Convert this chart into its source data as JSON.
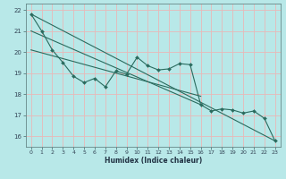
{
  "title": "",
  "xlabel": "Humidex (Indice chaleur)",
  "bg_color": "#b8e8e8",
  "grid_color": "#e8b8b8",
  "line_color": "#2a6b5e",
  "xlim": [
    -0.5,
    23.5
  ],
  "ylim": [
    15.5,
    22.3
  ],
  "xticks": [
    0,
    1,
    2,
    3,
    4,
    5,
    6,
    7,
    8,
    9,
    10,
    11,
    12,
    13,
    14,
    15,
    16,
    17,
    18,
    19,
    20,
    21,
    22,
    23
  ],
  "yticks": [
    16,
    17,
    18,
    19,
    20,
    21,
    22
  ],
  "series1_x": [
    0,
    1,
    2,
    3,
    4,
    5,
    6,
    7,
    8,
    9,
    10,
    11,
    12,
    13,
    14,
    15,
    16,
    17,
    18,
    19,
    20,
    21,
    22,
    23
  ],
  "series1_y": [
    21.8,
    21.0,
    20.1,
    19.5,
    18.85,
    18.55,
    18.75,
    18.35,
    19.1,
    18.95,
    19.75,
    19.35,
    19.15,
    19.2,
    19.45,
    19.4,
    17.5,
    17.2,
    17.3,
    17.25,
    17.1,
    17.2,
    16.85,
    15.78
  ],
  "line2_x": [
    0,
    23
  ],
  "line2_y": [
    21.8,
    15.78
  ],
  "line3_x": [
    0,
    16
  ],
  "line3_y": [
    21.0,
    17.5
  ],
  "line4_x": [
    0,
    16
  ],
  "line4_y": [
    20.1,
    17.9
  ]
}
